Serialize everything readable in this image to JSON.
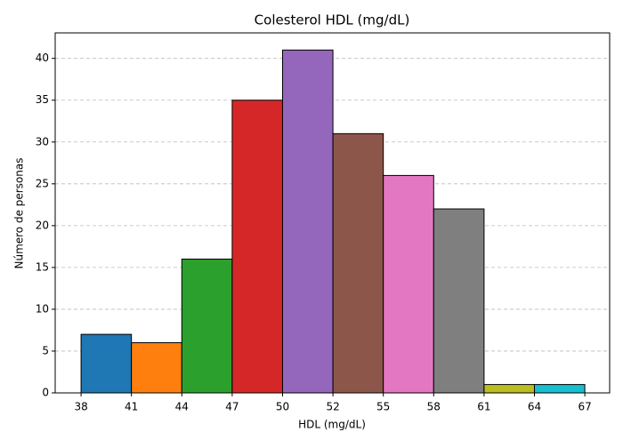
{
  "chart_data": {
    "type": "histogram",
    "title": "Colesterol HDL (mg/dL)",
    "x_label": "HDL (mg/dL)",
    "y_label": "Número de personas",
    "bins": [
      38.2,
      41.08,
      43.96,
      46.84,
      49.72,
      52.6,
      55.48,
      58.36,
      61.24,
      64.12,
      67.0
    ],
    "values": [
      7,
      6,
      16,
      35,
      41,
      31,
      26,
      22,
      1,
      1
    ],
    "colors": [
      "#1f77b4",
      "#ff7f0e",
      "#2ca02c",
      "#d62728",
      "#9467bd",
      "#8c564b",
      "#e377c2",
      "#7f7f7f",
      "#bcbd22",
      "#17becf"
    ],
    "xlim": [
      36.72,
      68.42
    ],
    "ylim": [
      0,
      43.05
    ],
    "xticks": [
      {
        "value": 38.2,
        "label": "38"
      },
      {
        "value": 41.08,
        "label": "41"
      },
      {
        "value": 43.96,
        "label": "44"
      },
      {
        "value": 46.84,
        "label": "47"
      },
      {
        "value": 49.72,
        "label": "50"
      },
      {
        "value": 52.6,
        "label": "52"
      },
      {
        "value": 55.48,
        "label": "55"
      },
      {
        "value": 58.36,
        "label": "58"
      },
      {
        "value": 61.24,
        "label": "61"
      },
      {
        "value": 64.12,
        "label": "64"
      },
      {
        "value": 67.0,
        "label": "67"
      }
    ],
    "yticks": [
      0,
      5,
      10,
      15,
      20,
      25,
      30,
      35,
      40
    ],
    "grid": true
  }
}
